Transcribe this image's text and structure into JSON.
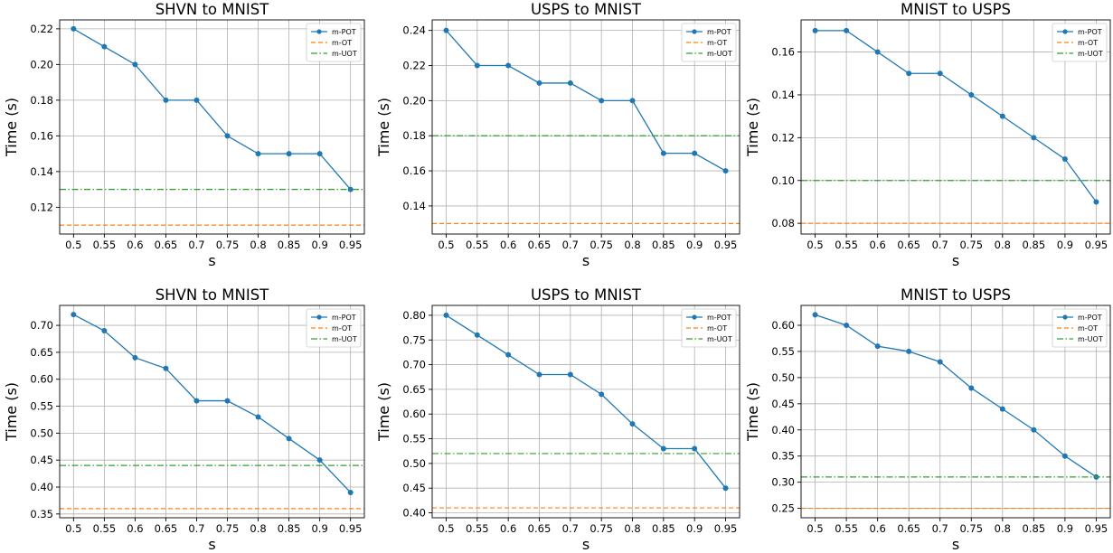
{
  "colors": {
    "m_pot": "#1f77b4",
    "m_ot": "#ff7f0e",
    "m_uot": "#2ca02c",
    "grid": "#b0b0b0"
  },
  "chart_data": [
    {
      "type": "line",
      "title": "SHVN to MNIST",
      "xlabel": "s",
      "ylabel": "Time (s)",
      "categories": [
        "0.5",
        "0.55",
        "0.6",
        "0.65",
        "0.7",
        "0.75",
        "0.8",
        "0.85",
        "0.9",
        "0.95"
      ],
      "ylim": [
        0.105,
        0.225
      ],
      "yticks": [
        0.12,
        0.14,
        0.16,
        0.18,
        0.2,
        0.22
      ],
      "ytick_labels": [
        "0.12",
        "0.14",
        "0.16",
        "0.18",
        "0.20",
        "0.22"
      ],
      "grid": true,
      "legend_position": "top-right",
      "series": [
        {
          "name": "m-POT",
          "style": "solid-marker",
          "values": [
            0.22,
            0.21,
            0.2,
            0.18,
            0.18,
            0.16,
            0.15,
            0.15,
            0.15,
            0.13
          ]
        },
        {
          "name": "m-OT",
          "style": "dashed",
          "constant": 0.11
        },
        {
          "name": "m-UOT",
          "style": "dashdot",
          "constant": 0.13
        }
      ]
    },
    {
      "type": "line",
      "title": "USPS to MNIST",
      "xlabel": "s",
      "ylabel": "Time (s)",
      "categories": [
        "0.5",
        "0.55",
        "0.6",
        "0.65",
        "0.7",
        "0.75",
        "0.8",
        "0.85",
        "0.9",
        "0.95"
      ],
      "ylim": [
        0.124,
        0.246
      ],
      "yticks": [
        0.14,
        0.16,
        0.18,
        0.2,
        0.22,
        0.24
      ],
      "ytick_labels": [
        "0.14",
        "0.16",
        "0.18",
        "0.20",
        "0.22",
        "0.24"
      ],
      "grid": true,
      "legend_position": "top-right",
      "series": [
        {
          "name": "m-POT",
          "style": "solid-marker",
          "values": [
            0.24,
            0.22,
            0.22,
            0.21,
            0.21,
            0.2,
            0.2,
            0.17,
            0.17,
            0.16
          ]
        },
        {
          "name": "m-OT",
          "style": "dashed",
          "constant": 0.13
        },
        {
          "name": "m-UOT",
          "style": "dashdot",
          "constant": 0.18
        }
      ]
    },
    {
      "type": "line",
      "title": "MNIST to USPS",
      "xlabel": "s",
      "ylabel": "Time (s)",
      "categories": [
        "0.5",
        "0.55",
        "0.6",
        "0.65",
        "0.7",
        "0.75",
        "0.8",
        "0.85",
        "0.9",
        "0.95"
      ],
      "ylim": [
        0.075,
        0.175
      ],
      "yticks": [
        0.08,
        0.1,
        0.12,
        0.14,
        0.16
      ],
      "ytick_labels": [
        "0.08",
        "0.10",
        "0.12",
        "0.14",
        "0.16"
      ],
      "grid": true,
      "legend_position": "top-right",
      "series": [
        {
          "name": "m-POT",
          "style": "solid-marker",
          "values": [
            0.17,
            0.17,
            0.16,
            0.15,
            0.15,
            0.14,
            0.13,
            0.12,
            0.11,
            0.09
          ]
        },
        {
          "name": "m-OT",
          "style": "dashed",
          "constant": 0.08
        },
        {
          "name": "m-UOT",
          "style": "dashdot",
          "constant": 0.1
        }
      ]
    },
    {
      "type": "line",
      "title": "SHVN to MNIST",
      "xlabel": "s",
      "ylabel": "Time (s)",
      "categories": [
        "0.5",
        "0.55",
        "0.6",
        "0.65",
        "0.7",
        "0.75",
        "0.8",
        "0.85",
        "0.9",
        "0.95"
      ],
      "ylim": [
        0.343,
        0.737
      ],
      "yticks": [
        0.35,
        0.4,
        0.45,
        0.5,
        0.55,
        0.6,
        0.65,
        0.7
      ],
      "ytick_labels": [
        "0.35",
        "0.40",
        "0.45",
        "0.50",
        "0.55",
        "0.60",
        "0.65",
        "0.70"
      ],
      "grid": true,
      "legend_position": "top-right",
      "series": [
        {
          "name": "m-POT",
          "style": "solid-marker",
          "values": [
            0.72,
            0.69,
            0.64,
            0.62,
            0.56,
            0.56,
            0.53,
            0.49,
            0.45,
            0.39
          ]
        },
        {
          "name": "m-OT",
          "style": "dashed",
          "constant": 0.36
        },
        {
          "name": "m-UOT",
          "style": "dashdot",
          "constant": 0.44
        }
      ]
    },
    {
      "type": "line",
      "title": "USPS to MNIST",
      "xlabel": "s",
      "ylabel": "Time (s)",
      "categories": [
        "0.5",
        "0.55",
        "0.6",
        "0.65",
        "0.7",
        "0.75",
        "0.8",
        "0.85",
        "0.9",
        "0.95"
      ],
      "ylim": [
        0.39,
        0.82
      ],
      "yticks": [
        0.4,
        0.45,
        0.5,
        0.55,
        0.6,
        0.65,
        0.7,
        0.75,
        0.8
      ],
      "ytick_labels": [
        "0.40",
        "0.45",
        "0.50",
        "0.55",
        "0.60",
        "0.65",
        "0.70",
        "0.75",
        "0.80"
      ],
      "grid": true,
      "legend_position": "top-right",
      "series": [
        {
          "name": "m-POT",
          "style": "solid-marker",
          "values": [
            0.8,
            0.76,
            0.72,
            0.68,
            0.68,
            0.64,
            0.58,
            0.53,
            0.53,
            0.45
          ]
        },
        {
          "name": "m-OT",
          "style": "dashed",
          "constant": 0.41
        },
        {
          "name": "m-UOT",
          "style": "dashdot",
          "constant": 0.52
        }
      ]
    },
    {
      "type": "line",
      "title": "MNIST to USPS",
      "xlabel": "s",
      "ylabel": "Time (s)",
      "categories": [
        "0.5",
        "0.55",
        "0.6",
        "0.65",
        "0.7",
        "0.75",
        "0.8",
        "0.85",
        "0.9",
        "0.95"
      ],
      "ylim": [
        0.232,
        0.638
      ],
      "yticks": [
        0.25,
        0.3,
        0.35,
        0.4,
        0.45,
        0.5,
        0.55,
        0.6
      ],
      "ytick_labels": [
        "0.25",
        "0.30",
        "0.35",
        "0.40",
        "0.45",
        "0.50",
        "0.55",
        "0.60"
      ],
      "grid": true,
      "legend_position": "top-right",
      "series": [
        {
          "name": "m-POT",
          "style": "solid-marker",
          "values": [
            0.62,
            0.6,
            0.56,
            0.55,
            0.53,
            0.48,
            0.44,
            0.4,
            0.35,
            0.31
          ]
        },
        {
          "name": "m-OT",
          "style": "dashed",
          "constant": 0.25
        },
        {
          "name": "m-UOT",
          "style": "dashdot",
          "constant": 0.31
        }
      ]
    }
  ]
}
